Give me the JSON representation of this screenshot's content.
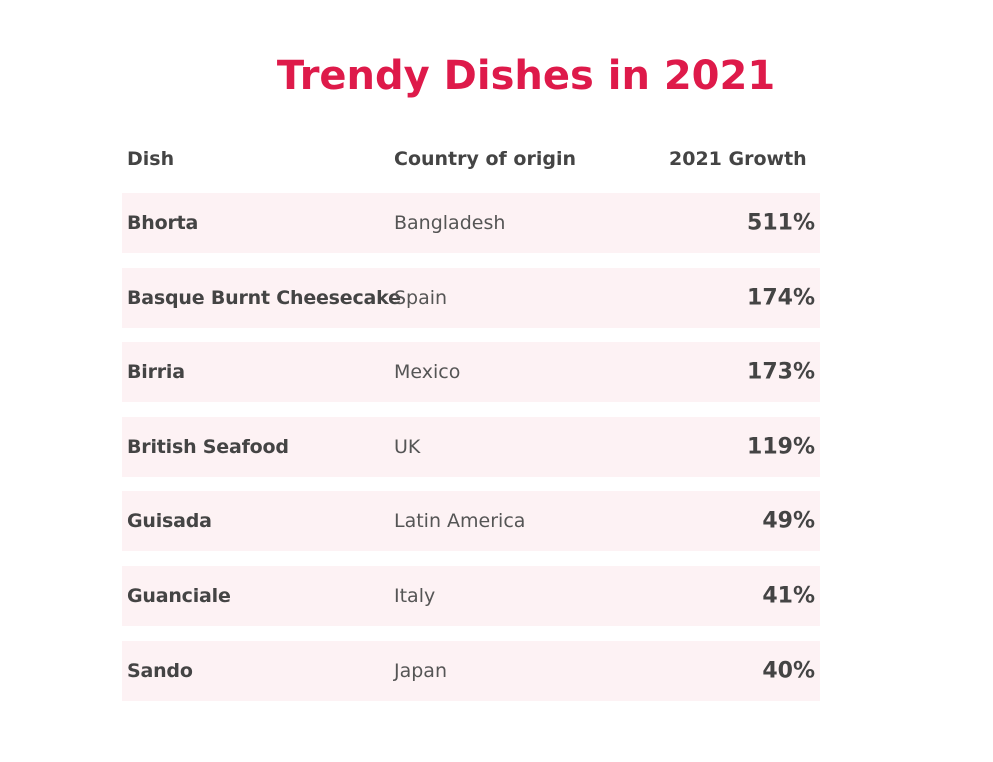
{
  "title": "Trendy Dishes in 2021",
  "chart_data": {
    "type": "table",
    "title": "Trendy Dishes in 2021",
    "columns": [
      "Dish",
      "Country of origin",
      "2021 Growth"
    ],
    "rows": [
      {
        "dish": "Bhorta",
        "country": "Bangladesh",
        "growth": "511%"
      },
      {
        "dish": "Basque Burnt Cheesecake",
        "country": "Spain",
        "growth": "174%"
      },
      {
        "dish": "Birria",
        "country": "Mexico",
        "growth": "173%"
      },
      {
        "dish": "British Seafood",
        "country": "UK",
        "growth": "119%"
      },
      {
        "dish": "Guisada",
        "country": "Latin America",
        "growth": "49%"
      },
      {
        "dish": "Guanciale",
        "country": "Italy",
        "growth": "41%"
      },
      {
        "dish": "Sando",
        "country": "Japan",
        "growth": "40%"
      }
    ]
  },
  "colors": {
    "title": "#de1a4a",
    "row_background": "#fdf2f4",
    "text": "#444444"
  }
}
